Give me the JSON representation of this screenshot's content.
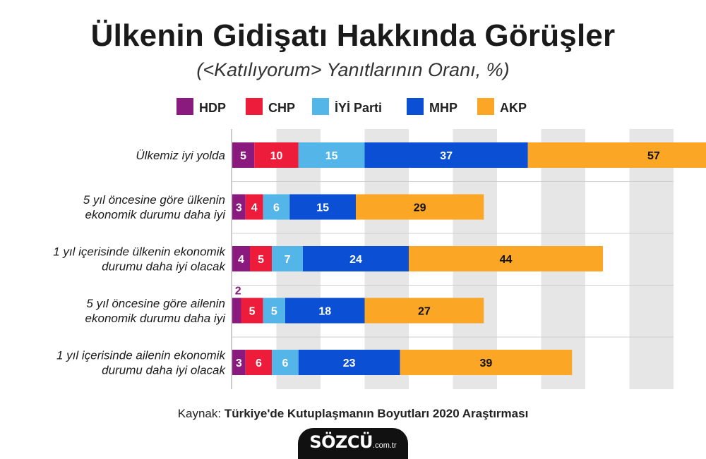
{
  "title": "Ülkenin Gidişatı Hakkında Görüşler",
  "subtitle": "(<Katılıyorum> Yanıtlarının Oranı, %)",
  "source_prefix": "Kaynak: ",
  "source_name": "Türkiye'de Kutuplaşmanın Boyutları 2020 Araştırması",
  "logo": {
    "main": "SÖZCÜ",
    "suffix": ".com.tr"
  },
  "colors": {
    "HDP": "#8b1a7f",
    "CHP": "#ee1c3b",
    "IYI": "#53b5e8",
    "MHP": "#0a4fd4",
    "AKP": "#fba624",
    "band": "#e6e6e6",
    "grid": "#cfcfcf"
  },
  "chart_data": {
    "type": "bar",
    "orientation": "horizontal",
    "stacked": true,
    "categories": [
      [
        "Ülkemiz iyi yolda"
      ],
      [
        "5 yıl öncesine göre ülkenin",
        "ekonomik durumu daha iyi"
      ],
      [
        "1 yıl içerisinde ülkenin ekonomik",
        "durumu daha iyi olacak"
      ],
      [
        "5 yıl öncesine göre ailenin",
        "ekonomik durumu daha iyi"
      ],
      [
        "1 yıl içerisinde ailenin ekonomik",
        "durumu daha iyi olacak"
      ]
    ],
    "series": [
      {
        "name": "HDP",
        "color_key": "HDP",
        "values": [
          5,
          3,
          4,
          2,
          3
        ]
      },
      {
        "name": "CHP",
        "color_key": "CHP",
        "values": [
          10,
          4,
          5,
          5,
          6
        ]
      },
      {
        "name": "İYİ Parti",
        "color_key": "IYI",
        "values": [
          15,
          6,
          7,
          5,
          6
        ]
      },
      {
        "name": "MHP",
        "color_key": "MHP",
        "values": [
          37,
          15,
          24,
          18,
          23
        ]
      },
      {
        "name": "AKP",
        "color_key": "AKP",
        "values": [
          57,
          29,
          44,
          27,
          39
        ]
      }
    ],
    "legend_position": "top",
    "grid": true
  }
}
